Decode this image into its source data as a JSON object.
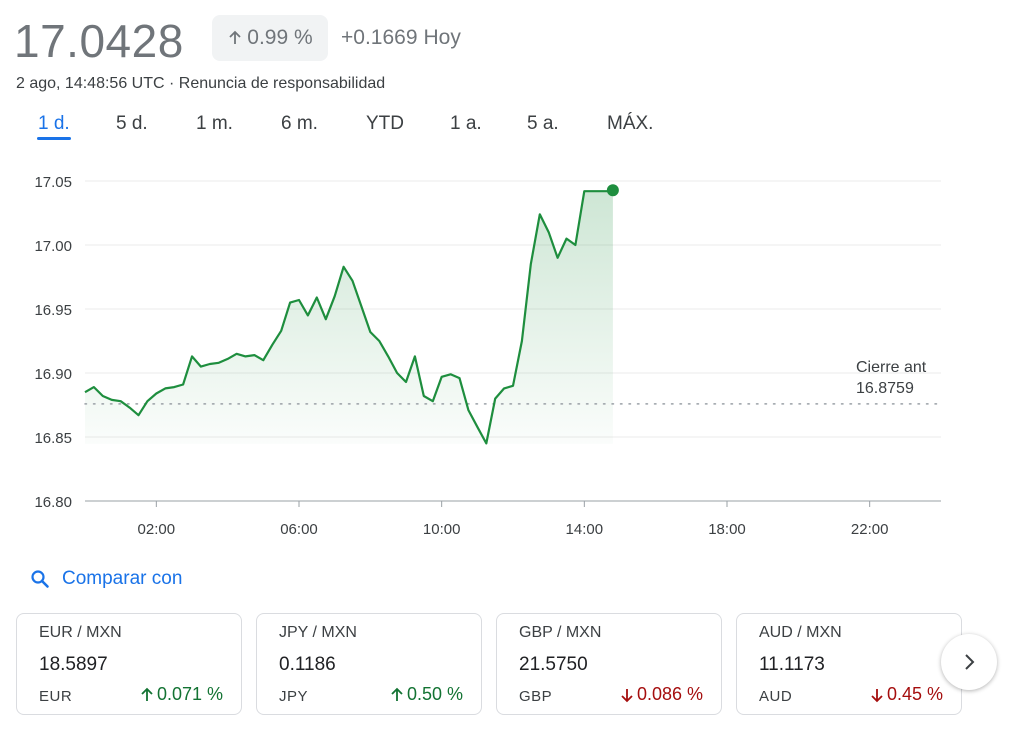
{
  "header": {
    "price": "17.0428",
    "percent_change": "0.99 %",
    "abs_change": "+0.1669",
    "period_label": "Hoy",
    "timestamp": "2 ago, 14:48:56 UTC",
    "separator": " · ",
    "disclaimer": "Renuncia de responsabilidad"
  },
  "tabs": [
    {
      "label": "1 d.",
      "active": true
    },
    {
      "label": "5 d.",
      "active": false
    },
    {
      "label": "1 m.",
      "active": false
    },
    {
      "label": "6 m.",
      "active": false
    },
    {
      "label": "YTD",
      "active": false
    },
    {
      "label": "1 a.",
      "active": false
    },
    {
      "label": "5 a.",
      "active": false
    },
    {
      "label": "MÁX.",
      "active": false
    }
  ],
  "chart_data": {
    "type": "area",
    "x_unit": "hour of day (UTC)",
    "x": [
      0,
      0.25,
      0.5,
      0.75,
      1,
      1.25,
      1.5,
      1.75,
      2,
      2.25,
      2.5,
      2.75,
      3,
      3.25,
      3.5,
      3.75,
      4,
      4.25,
      4.5,
      4.75,
      5,
      5.25,
      5.5,
      5.75,
      6,
      6.25,
      6.5,
      6.75,
      7,
      7.25,
      7.5,
      7.75,
      8,
      8.25,
      8.5,
      8.75,
      9,
      9.25,
      9.5,
      9.75,
      10,
      10.25,
      10.5,
      10.75,
      11,
      11.25,
      11.5,
      11.75,
      12,
      12.25,
      12.5,
      12.75,
      13,
      13.25,
      13.5,
      13.75,
      14,
      14.25,
      14.5,
      14.75,
      14.8
    ],
    "values": [
      16.885,
      16.889,
      16.882,
      16.879,
      16.878,
      16.873,
      16.867,
      16.878,
      16.884,
      16.888,
      16.889,
      16.891,
      16.913,
      16.905,
      16.907,
      16.908,
      16.911,
      16.915,
      16.913,
      16.914,
      16.91,
      16.922,
      16.933,
      16.955,
      16.957,
      16.945,
      16.959,
      16.942,
      16.96,
      16.983,
      16.972,
      16.952,
      16.932,
      16.925,
      16.913,
      16.9,
      16.893,
      16.913,
      16.882,
      16.878,
      16.897,
      16.899,
      16.896,
      16.871,
      16.858,
      16.845,
      16.88,
      16.888,
      16.89,
      16.925,
      16.985,
      17.024,
      17.01,
      16.99,
      17.005,
      17.0,
      17.042,
      17.042,
      17.042,
      17.042,
      17.0428
    ],
    "xticks": [
      2,
      6,
      10,
      14,
      18,
      22
    ],
    "xtick_labels": [
      "02:00",
      "06:00",
      "10:00",
      "14:00",
      "18:00",
      "22:00"
    ],
    "xlim": [
      0,
      24
    ],
    "ylim": [
      16.8,
      17.05
    ],
    "yticks": [
      16.8,
      16.85,
      16.9,
      16.95,
      17.0,
      17.05
    ],
    "ytick_labels": [
      "16.80",
      "16.85",
      "16.90",
      "16.95",
      "17.00",
      "17.05"
    ],
    "grid": true,
    "previous_close": 16.8759,
    "previous_close_label": "Cierre ant",
    "previous_close_value": "16.8759",
    "line_color": "#1e8e3e"
  },
  "compare": {
    "label": "Comparar con"
  },
  "cards": [
    {
      "pair": "EUR / MXN",
      "value": "18.5897",
      "currency": "EUR",
      "change": "0.071 %",
      "direction": "up"
    },
    {
      "pair": "JPY / MXN",
      "value": "0.1186",
      "currency": "JPY",
      "change": "0.50 %",
      "direction": "up"
    },
    {
      "pair": "GBP / MXN",
      "value": "21.5750",
      "currency": "GBP",
      "change": "0.086 %",
      "direction": "down"
    },
    {
      "pair": "AUD / MXN",
      "value": "11.1173",
      "currency": "AUD",
      "change": "0.45 %",
      "direction": "down"
    }
  ],
  "colors": {
    "up": "#137333",
    "down": "#a50e0e",
    "accent": "#1a73e8",
    "muted": "#70757a"
  }
}
